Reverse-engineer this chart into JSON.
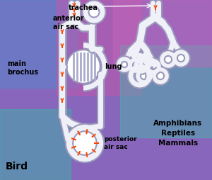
{
  "tube_color": "#f0f0f8",
  "tube_edge": "#9999bb",
  "arrow_color": "#ff4400",
  "text_color": "#000000",
  "title_left": "Bird",
  "title_right": "Amphibians\nReptiles\nMammals",
  "label_trachea": "trachea",
  "label_anterior": "anterior\nair sac",
  "label_main": "main\nbrochus",
  "label_lung": "lung",
  "label_posterior": "posterior\nair sac"
}
